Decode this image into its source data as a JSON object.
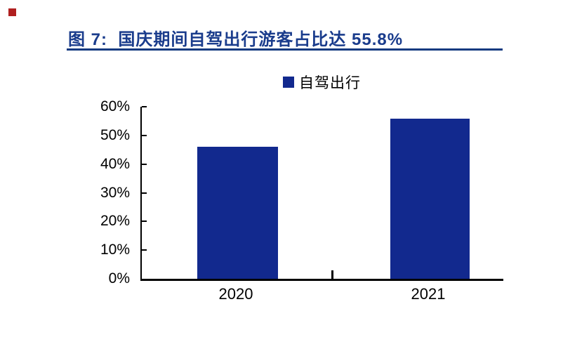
{
  "marker": {
    "color": "#B02020"
  },
  "header": {
    "title": "图 7:  国庆期间自驾出行游客占比达 55.8%",
    "title_color": "#1A3C8C",
    "underline_color": "#143A80"
  },
  "legend": {
    "label": "自驾出行",
    "swatch_color": "#12298E"
  },
  "chart_data": {
    "type": "bar",
    "title": "图 7: 国庆期间自驾出行游客占比达 55.8%",
    "categories": [
      "2020",
      "2021"
    ],
    "series": [
      {
        "name": "自驾出行",
        "values": [
          46.0,
          55.8
        ]
      }
    ],
    "value_unit": "%",
    "ylim": [
      0,
      60
    ],
    "ytick_step": 10,
    "ytick_labels": [
      "0%",
      "10%",
      "20%",
      "30%",
      "40%",
      "50%",
      "60%"
    ],
    "xlabel": "",
    "ylabel": "",
    "grid": false,
    "legend_position": "top-center",
    "bar_color": "#12298E",
    "axis_color": "#000000",
    "label_color": "#000000"
  }
}
